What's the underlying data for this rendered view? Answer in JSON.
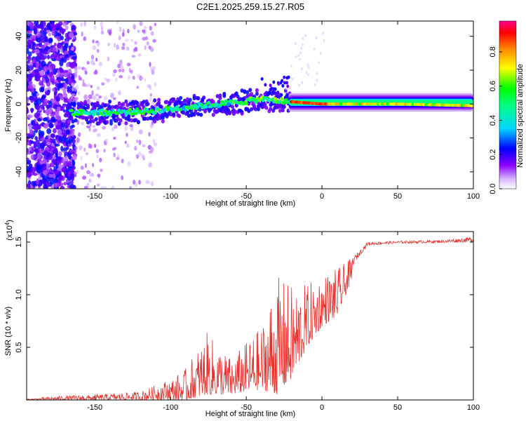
{
  "figure_title": "C2E1.2025.259.15.27.R05",
  "chart_data": [
    {
      "type": "heatmap",
      "title": "C2E1.2025.259.15.27.R05",
      "xlabel": "Height of straight line (km)",
      "ylabel": "Frequency (Hz)",
      "xlim": [
        -195,
        100
      ],
      "ylim": [
        -50,
        49
      ],
      "xticks": [
        -150,
        -100,
        -50,
        0,
        50,
        100
      ],
      "yticks": [
        -40,
        -20,
        0,
        20,
        40
      ],
      "colorbar": {
        "label": "Normalized spectral amplitude",
        "range": [
          0.0,
          0.98
        ],
        "ticks": [
          0.0,
          0.2,
          0.4,
          0.6,
          0.8
        ],
        "tick_labels": [
          "0.0",
          "0.2",
          "0.4",
          "0.6",
          "0.8"
        ],
        "colors": [
          "#ffffff",
          "#8800ff",
          "#0000ff",
          "#00ffff",
          "#00ff00",
          "#ffff00",
          "#ff8800",
          "#ff0000",
          "#ff0088"
        ]
      },
      "features": {
        "ridge_center_hz": [
          {
            "x": -165,
            "y": -5
          },
          {
            "x": -140,
            "y": -5
          },
          {
            "x": -110,
            "y": -4
          },
          {
            "x": -80,
            "y": -1
          },
          {
            "x": -55,
            "y": 1
          },
          {
            "x": -40,
            "y": 3
          },
          {
            "x": -30,
            "y": 2
          },
          {
            "x": -15,
            "y": 1
          },
          {
            "x": 0,
            "y": 0
          },
          {
            "x": 50,
            "y": 0
          },
          {
            "x": 100,
            "y": -1
          }
        ],
        "peak_region_km": [
          -25,
          5
        ],
        "noisy_region_km": [
          -195,
          -165
        ]
      }
    },
    {
      "type": "line",
      "title": "",
      "xlabel": "Height of straight line (km)",
      "ylabel": "SNR (10 * v/v)",
      "y_multiplier": "(x10^4)",
      "y_multiplier_base": "(x10",
      "y_multiplier_exp": "4",
      "y_multiplier_close": ")",
      "xlim": [
        -195,
        100
      ],
      "ylim": [
        0,
        1.6
      ],
      "xticks": [
        -150,
        -100,
        -50,
        0,
        50,
        100
      ],
      "yticks": [
        0.5,
        1.0,
        1.5
      ],
      "ytick_labels": [
        "0.5",
        "1.0",
        "1.5"
      ],
      "series": [
        {
          "name": "SNR",
          "color": "#e8302a",
          "envelope": [
            {
              "x": -195,
              "lo": 0.0,
              "hi": 0.01
            },
            {
              "x": -170,
              "lo": 0.0,
              "hi": 0.04
            },
            {
              "x": -150,
              "lo": 0.0,
              "hi": 0.05
            },
            {
              "x": -120,
              "lo": 0.0,
              "hi": 0.08
            },
            {
              "x": -100,
              "lo": 0.0,
              "hi": 0.2
            },
            {
              "x": -90,
              "lo": 0.0,
              "hi": 0.3
            },
            {
              "x": -76,
              "lo": 0.05,
              "hi": 0.64
            },
            {
              "x": -60,
              "lo": 0.05,
              "hi": 0.4
            },
            {
              "x": -50,
              "lo": 0.08,
              "hi": 0.55
            },
            {
              "x": -40,
              "lo": 0.1,
              "hi": 0.7
            },
            {
              "x": -30,
              "lo": 0.05,
              "hi": 1.18
            },
            {
              "x": -20,
              "lo": 0.2,
              "hi": 1.1
            },
            {
              "x": -10,
              "lo": 0.5,
              "hi": 1.1
            },
            {
              "x": 0,
              "lo": 0.7,
              "hi": 1.2
            },
            {
              "x": 10,
              "lo": 0.8,
              "hi": 1.25
            },
            {
              "x": 20,
              "lo": 1.15,
              "hi": 1.35
            },
            {
              "x": 30,
              "lo": 1.42,
              "hi": 1.5
            },
            {
              "x": 50,
              "lo": 1.45,
              "hi": 1.51
            },
            {
              "x": 80,
              "lo": 1.45,
              "hi": 1.52
            },
            {
              "x": 100,
              "lo": 1.42,
              "hi": 1.55
            }
          ]
        }
      ]
    }
  ]
}
